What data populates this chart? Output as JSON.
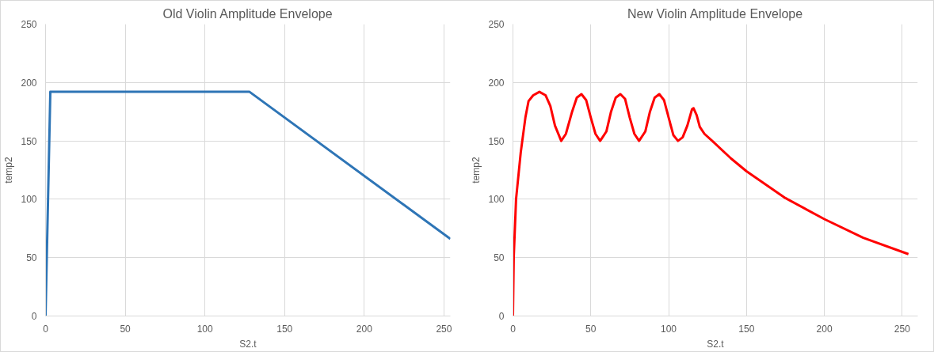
{
  "chart_data": [
    {
      "type": "line",
      "title": "Old Violin Amplitude Envelope",
      "xlabel": "S2.t",
      "ylabel": "temp2",
      "xlim": [
        0,
        254
      ],
      "ylim": [
        0,
        250
      ],
      "xticks": [
        0,
        50,
        100,
        150,
        200,
        250
      ],
      "yticks": [
        0,
        50,
        100,
        150,
        200,
        250
      ],
      "grid": true,
      "series": [
        {
          "color": "#2e75b6",
          "x": [
            0,
            3,
            128,
            254
          ],
          "values": [
            0,
            192,
            192,
            66
          ]
        }
      ]
    },
    {
      "type": "line",
      "title": "New Violin Amplitude Envelope",
      "xlabel": "S2.t",
      "ylabel": "temp2",
      "xlim": [
        0,
        260
      ],
      "ylim": [
        0,
        250
      ],
      "xticks": [
        0,
        50,
        100,
        150,
        200,
        250
      ],
      "yticks": [
        0,
        50,
        100,
        150,
        200,
        250
      ],
      "grid": true,
      "series": [
        {
          "color": "#ff0000",
          "x": [
            0,
            0.5,
            2,
            5,
            8,
            10,
            13,
            17,
            21,
            24,
            27,
            31,
            34,
            38,
            41,
            44,
            47,
            50,
            53,
            56,
            60,
            63,
            66,
            69,
            72,
            75,
            78,
            81,
            85,
            88,
            91,
            94,
            97,
            100,
            103,
            106,
            109,
            112,
            115,
            116,
            118,
            120,
            123,
            128,
            140,
            150,
            175,
            200,
            225,
            254
          ],
          "values": [
            0,
            50,
            100,
            140,
            170,
            184,
            189,
            192,
            189,
            180,
            163,
            150,
            156,
            175,
            187,
            190,
            185,
            170,
            156,
            150,
            158,
            175,
            187,
            190,
            186,
            170,
            156,
            150,
            158,
            175,
            187,
            190,
            185,
            170,
            155,
            150,
            153,
            163,
            177,
            178,
            172,
            162,
            156,
            150,
            135,
            124,
            101,
            83,
            67,
            53
          ]
        }
      ]
    }
  ]
}
